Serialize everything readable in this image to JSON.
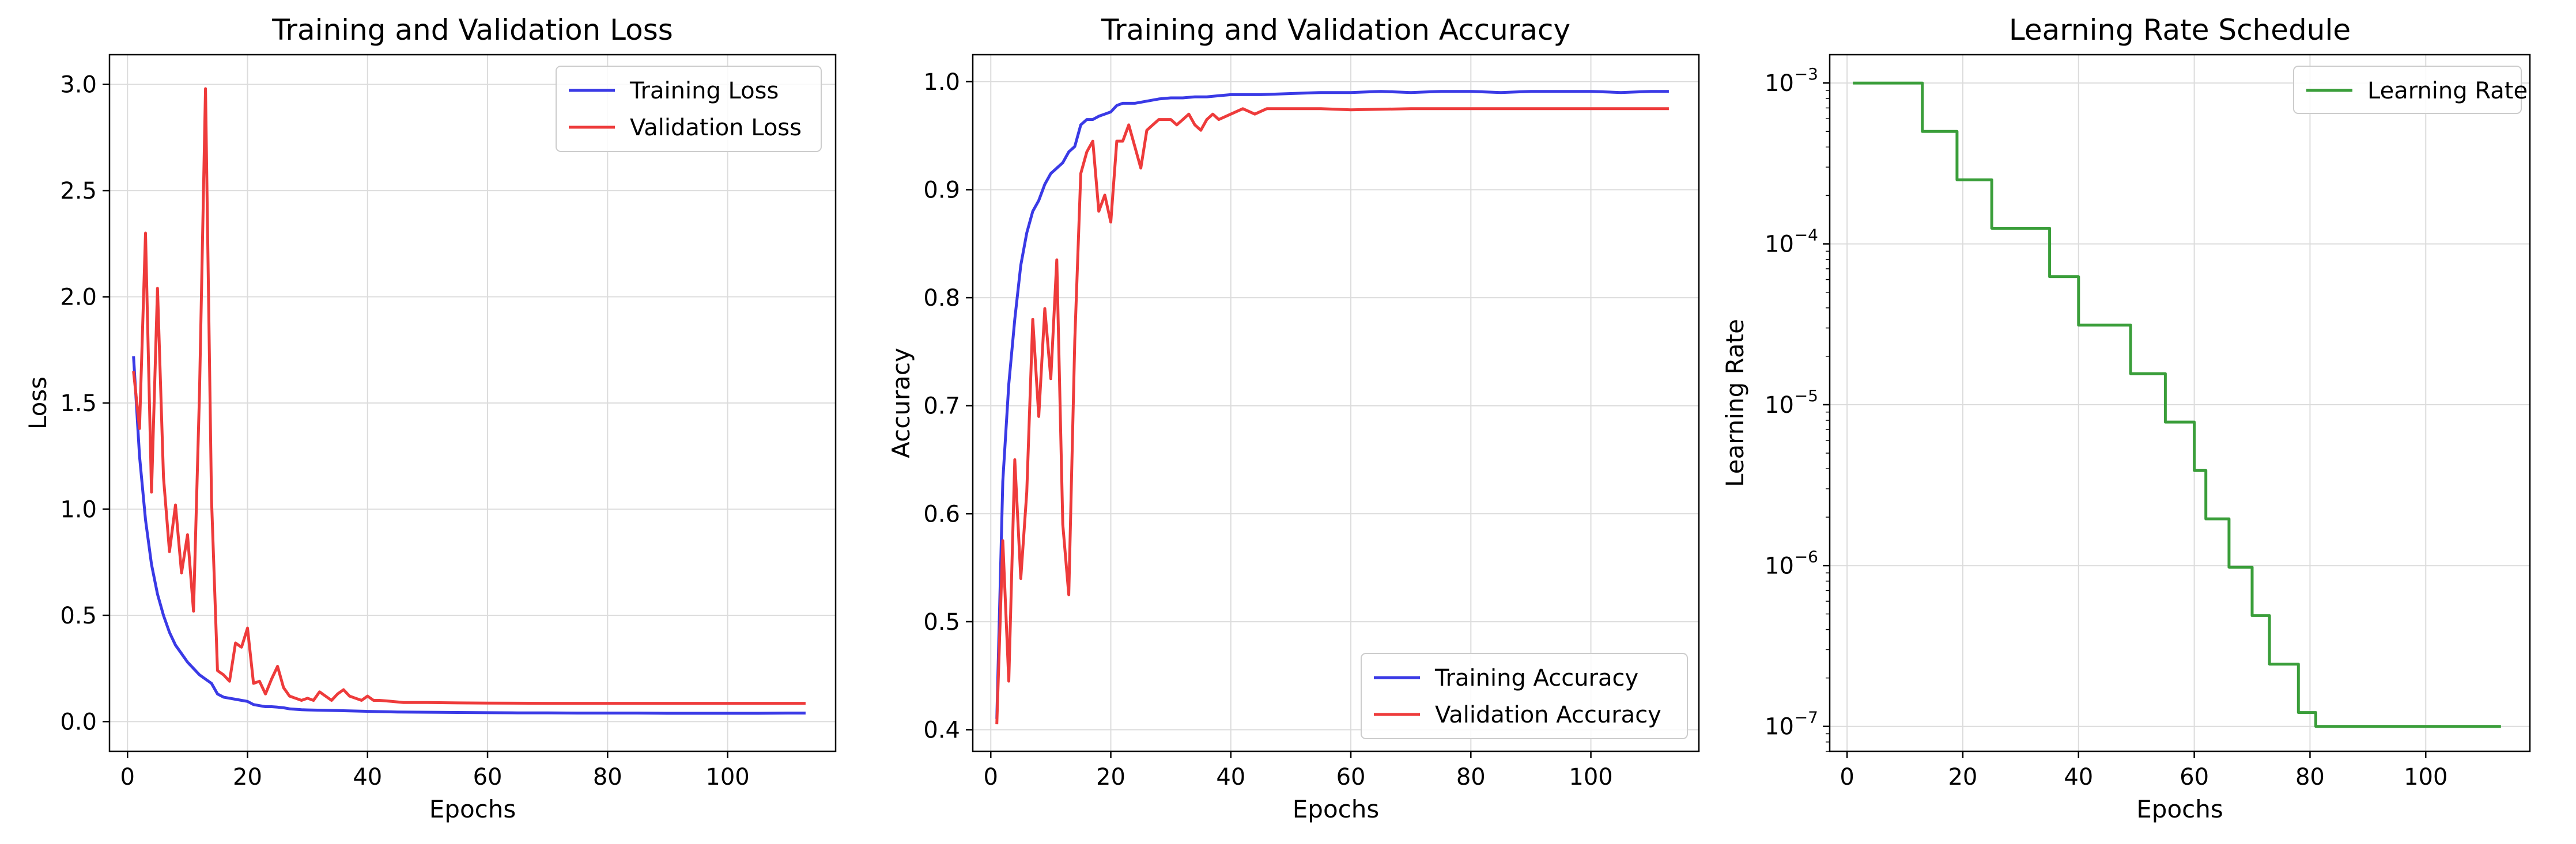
{
  "chart_data": [
    {
      "type": "line",
      "title": "Training and Validation Loss",
      "xlabel": "Epochs",
      "ylabel": "Loss",
      "xlim": [
        -3,
        118
      ],
      "ylim": [
        -0.14,
        3.14
      ],
      "xticks": [
        0,
        20,
        40,
        60,
        80,
        100
      ],
      "yticks": [
        0.0,
        0.5,
        1.0,
        1.5,
        2.0,
        2.5,
        3.0
      ],
      "ytick_labels": [
        "0.0",
        "0.5",
        "1.0",
        "1.5",
        "2.0",
        "2.5",
        "3.0"
      ],
      "grid": true,
      "legend": "top-right",
      "series": [
        {
          "name": "Training Loss",
          "color": "#3a3ae6",
          "points": [
            [
              1,
              1.72
            ],
            [
              2,
              1.25
            ],
            [
              3,
              0.95
            ],
            [
              4,
              0.74
            ],
            [
              5,
              0.6
            ],
            [
              6,
              0.5
            ],
            [
              7,
              0.42
            ],
            [
              8,
              0.36
            ],
            [
              9,
              0.32
            ],
            [
              10,
              0.28
            ],
            [
              11,
              0.25
            ],
            [
              12,
              0.22
            ],
            [
              13,
              0.2
            ],
            [
              14,
              0.18
            ],
            [
              15,
              0.13
            ],
            [
              16,
              0.115
            ],
            [
              17,
              0.11
            ],
            [
              18,
              0.105
            ],
            [
              19,
              0.1
            ],
            [
              20,
              0.095
            ],
            [
              21,
              0.08
            ],
            [
              22,
              0.075
            ],
            [
              23,
              0.07
            ],
            [
              24,
              0.07
            ],
            [
              25,
              0.068
            ],
            [
              26,
              0.065
            ],
            [
              27,
              0.06
            ],
            [
              28,
              0.058
            ],
            [
              29,
              0.056
            ],
            [
              30,
              0.055
            ],
            [
              35,
              0.052
            ],
            [
              40,
              0.048
            ],
            [
              45,
              0.045
            ],
            [
              50,
              0.044
            ],
            [
              55,
              0.043
            ],
            [
              60,
              0.042
            ],
            [
              65,
              0.041
            ],
            [
              70,
              0.041
            ],
            [
              75,
              0.04
            ],
            [
              80,
              0.04
            ],
            [
              85,
              0.04
            ],
            [
              90,
              0.039
            ],
            [
              95,
              0.039
            ],
            [
              100,
              0.039
            ],
            [
              105,
              0.039
            ],
            [
              110,
              0.04
            ],
            [
              113,
              0.04
            ]
          ]
        },
        {
          "name": "Validation Loss",
          "color": "#ee3b3b",
          "points": [
            [
              1,
              1.65
            ],
            [
              2,
              1.38
            ],
            [
              3,
              2.3
            ],
            [
              4,
              1.08
            ],
            [
              5,
              2.04
            ],
            [
              6,
              1.15
            ],
            [
              7,
              0.8
            ],
            [
              8,
              1.02
            ],
            [
              9,
              0.7
            ],
            [
              10,
              0.88
            ],
            [
              11,
              0.52
            ],
            [
              12,
              1.55
            ],
            [
              13,
              2.98
            ],
            [
              14,
              1.05
            ],
            [
              15,
              0.24
            ],
            [
              16,
              0.22
            ],
            [
              17,
              0.19
            ],
            [
              18,
              0.37
            ],
            [
              19,
              0.35
            ],
            [
              20,
              0.44
            ],
            [
              21,
              0.18
            ],
            [
              22,
              0.19
            ],
            [
              23,
              0.13
            ],
            [
              24,
              0.2
            ],
            [
              25,
              0.26
            ],
            [
              26,
              0.16
            ],
            [
              27,
              0.12
            ],
            [
              28,
              0.11
            ],
            [
              29,
              0.1
            ],
            [
              30,
              0.11
            ],
            [
              31,
              0.1
            ],
            [
              32,
              0.14
            ],
            [
              33,
              0.12
            ],
            [
              34,
              0.1
            ],
            [
              35,
              0.13
            ],
            [
              36,
              0.15
            ],
            [
              37,
              0.12
            ],
            [
              38,
              0.11
            ],
            [
              39,
              0.1
            ],
            [
              40,
              0.12
            ],
            [
              41,
              0.1
            ],
            [
              42,
              0.1
            ],
            [
              44,
              0.095
            ],
            [
              46,
              0.09
            ],
            [
              50,
              0.09
            ],
            [
              55,
              0.088
            ],
            [
              60,
              0.087
            ],
            [
              70,
              0.086
            ],
            [
              80,
              0.086
            ],
            [
              90,
              0.086
            ],
            [
              100,
              0.086
            ],
            [
              110,
              0.086
            ],
            [
              113,
              0.086
            ]
          ]
        }
      ]
    },
    {
      "type": "line",
      "title": "Training and Validation Accuracy",
      "xlabel": "Epochs",
      "ylabel": "Accuracy",
      "xlim": [
        -3,
        118
      ],
      "ylim": [
        0.38,
        1.025
      ],
      "xticks": [
        0,
        20,
        40,
        60,
        80,
        100
      ],
      "yticks": [
        0.4,
        0.5,
        0.6,
        0.7,
        0.8,
        0.9,
        1.0
      ],
      "ytick_labels": [
        "0.4",
        "0.5",
        "0.6",
        "0.7",
        "0.8",
        "0.9",
        "1.0"
      ],
      "grid": true,
      "legend": "bottom-right",
      "series": [
        {
          "name": "Training Accuracy",
          "color": "#3a3ae6",
          "points": [
            [
              1,
              0.41
            ],
            [
              2,
              0.63
            ],
            [
              3,
              0.72
            ],
            [
              4,
              0.78
            ],
            [
              5,
              0.83
            ],
            [
              6,
              0.86
            ],
            [
              7,
              0.88
            ],
            [
              8,
              0.89
            ],
            [
              9,
              0.905
            ],
            [
              10,
              0.915
            ],
            [
              11,
              0.92
            ],
            [
              12,
              0.925
            ],
            [
              13,
              0.935
            ],
            [
              14,
              0.94
            ],
            [
              15,
              0.96
            ],
            [
              16,
              0.965
            ],
            [
              17,
              0.965
            ],
            [
              18,
              0.968
            ],
            [
              19,
              0.97
            ],
            [
              20,
              0.972
            ],
            [
              21,
              0.978
            ],
            [
              22,
              0.98
            ],
            [
              24,
              0.98
            ],
            [
              26,
              0.982
            ],
            [
              28,
              0.984
            ],
            [
              30,
              0.985
            ],
            [
              32,
              0.985
            ],
            [
              34,
              0.986
            ],
            [
              36,
              0.986
            ],
            [
              38,
              0.987
            ],
            [
              40,
              0.988
            ],
            [
              45,
              0.988
            ],
            [
              50,
              0.989
            ],
            [
              55,
              0.99
            ],
            [
              60,
              0.99
            ],
            [
              65,
              0.991
            ],
            [
              70,
              0.99
            ],
            [
              75,
              0.991
            ],
            [
              80,
              0.991
            ],
            [
              85,
              0.99
            ],
            [
              90,
              0.991
            ],
            [
              95,
              0.991
            ],
            [
              100,
              0.991
            ],
            [
              105,
              0.99
            ],
            [
              110,
              0.991
            ],
            [
              113,
              0.991
            ]
          ]
        },
        {
          "name": "Validation Accuracy",
          "color": "#ee3b3b",
          "points": [
            [
              1,
              0.405
            ],
            [
              2,
              0.575
            ],
            [
              3,
              0.445
            ],
            [
              4,
              0.65
            ],
            [
              5,
              0.54
            ],
            [
              6,
              0.62
            ],
            [
              7,
              0.78
            ],
            [
              8,
              0.69
            ],
            [
              9,
              0.79
            ],
            [
              10,
              0.725
            ],
            [
              11,
              0.835
            ],
            [
              12,
              0.59
            ],
            [
              13,
              0.525
            ],
            [
              14,
              0.76
            ],
            [
              15,
              0.915
            ],
            [
              16,
              0.935
            ],
            [
              17,
              0.945
            ],
            [
              18,
              0.88
            ],
            [
              19,
              0.895
            ],
            [
              20,
              0.87
            ],
            [
              21,
              0.945
            ],
            [
              22,
              0.945
            ],
            [
              23,
              0.96
            ],
            [
              24,
              0.94
            ],
            [
              25,
              0.92
            ],
            [
              26,
              0.955
            ],
            [
              27,
              0.96
            ],
            [
              28,
              0.965
            ],
            [
              30,
              0.965
            ],
            [
              31,
              0.96
            ],
            [
              32,
              0.965
            ],
            [
              33,
              0.97
            ],
            [
              34,
              0.96
            ],
            [
              35,
              0.955
            ],
            [
              36,
              0.965
            ],
            [
              37,
              0.97
            ],
            [
              38,
              0.965
            ],
            [
              40,
              0.97
            ],
            [
              42,
              0.975
            ],
            [
              44,
              0.97
            ],
            [
              46,
              0.975
            ],
            [
              50,
              0.975
            ],
            [
              55,
              0.975
            ],
            [
              60,
              0.974
            ],
            [
              70,
              0.975
            ],
            [
              80,
              0.975
            ],
            [
              90,
              0.975
            ],
            [
              100,
              0.975
            ],
            [
              110,
              0.975
            ],
            [
              113,
              0.975
            ]
          ]
        }
      ]
    },
    {
      "type": "line",
      "title": "Learning Rate Schedule",
      "xlabel": "Epochs",
      "ylabel": "Learning Rate",
      "yscale": "log",
      "xlim": [
        -3,
        118
      ],
      "ylim": [
        7e-08,
        0.0015
      ],
      "xticks": [
        0,
        20,
        40,
        60,
        80,
        100
      ],
      "yticks_exp": [
        -3,
        -4,
        -5,
        -6,
        -7
      ],
      "ytick_base": "10",
      "grid": true,
      "legend": "top-right",
      "series": [
        {
          "name": "Learning Rate",
          "color": "#3a9e3a",
          "step_points": [
            [
              1,
              0.001
            ],
            [
              13,
              0.001
            ],
            [
              13,
              0.0005
            ],
            [
              19,
              0.0005
            ],
            [
              19,
              0.00025
            ],
            [
              25,
              0.00025
            ],
            [
              25,
              0.000125
            ],
            [
              35,
              0.000125
            ],
            [
              35,
              6.25e-05
            ],
            [
              40,
              6.25e-05
            ],
            [
              40,
              3.125e-05
            ],
            [
              49,
              3.125e-05
            ],
            [
              49,
              1.56e-05
            ],
            [
              55,
              1.56e-05
            ],
            [
              55,
              7.8e-06
            ],
            [
              60,
              7.8e-06
            ],
            [
              60,
              3.9e-06
            ],
            [
              62,
              3.9e-06
            ],
            [
              62,
              1.95e-06
            ],
            [
              66,
              1.95e-06
            ],
            [
              66,
              9.77e-07
            ],
            [
              70,
              9.77e-07
            ],
            [
              70,
              4.88e-07
            ],
            [
              73,
              4.88e-07
            ],
            [
              73,
              2.44e-07
            ],
            [
              78,
              2.44e-07
            ],
            [
              78,
              1.22e-07
            ],
            [
              81,
              1.22e-07
            ],
            [
              81,
              1e-07
            ],
            [
              113,
              1e-07
            ]
          ]
        }
      ]
    }
  ]
}
